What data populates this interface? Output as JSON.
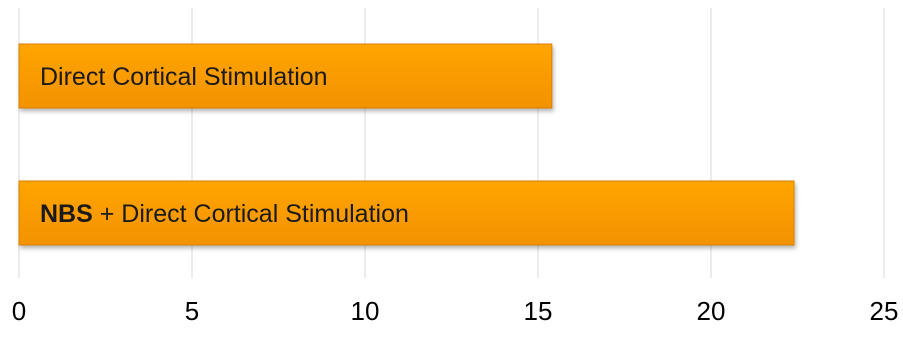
{
  "chart_data": {
    "type": "bar",
    "orientation": "horizontal",
    "categories": [
      "Direct Cortical Stimulation",
      "NBS + Direct Cortical Stimulation"
    ],
    "values": [
      15.4,
      22.4
    ],
    "bar_labels": [
      {
        "bold": "",
        "rest": "Direct Cortical Stimulation"
      },
      {
        "bold": "NBS",
        "rest": " + Direct Cortical Stimulation"
      }
    ],
    "xlim": [
      0,
      25
    ],
    "x_ticks": [
      0,
      5,
      10,
      15,
      20,
      25
    ],
    "grid": true,
    "legend": "none",
    "title": "",
    "xlabel": "",
    "ylabel": "",
    "colors": {
      "bar_fill_top": "#ffa500",
      "bar_fill_bottom": "#f39200",
      "bar_edge": "#d97f00",
      "grid": "#d9d9d9"
    }
  }
}
